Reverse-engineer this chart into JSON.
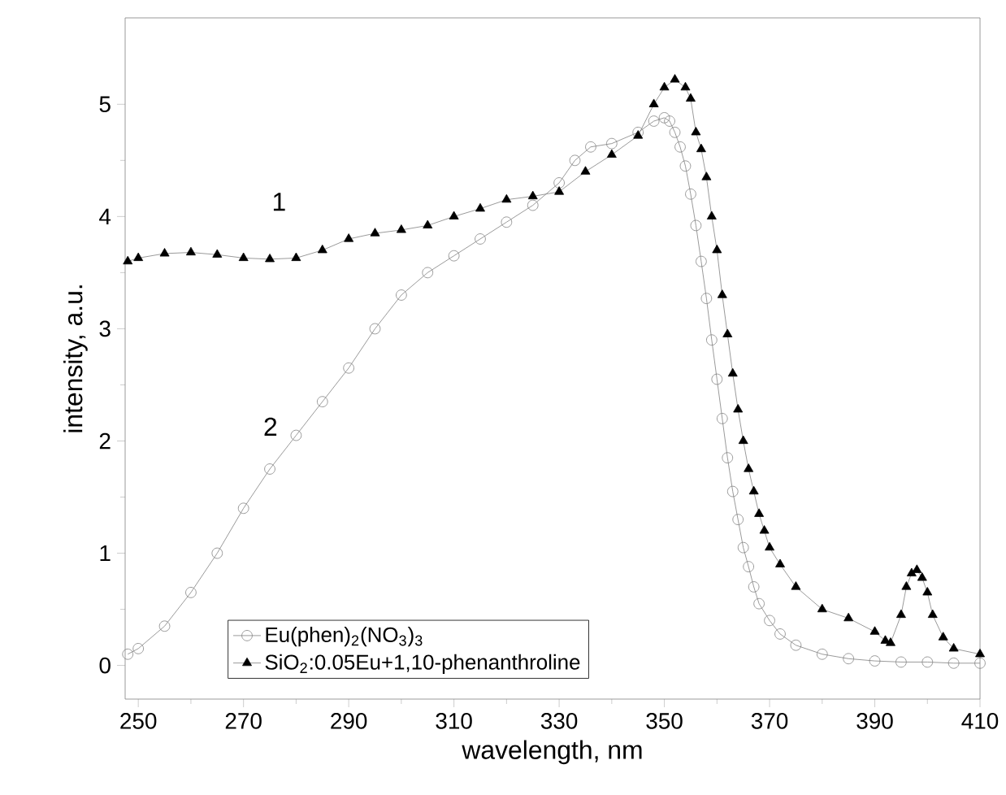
{
  "chart_data": {
    "type": "line",
    "xlabel": "wavelength, nm",
    "ylabel": "intensity, a.u.",
    "xlim": [
      247.5,
      410
    ],
    "ylim": [
      -0.3,
      5.77
    ],
    "xticks": [
      250,
      270,
      290,
      310,
      330,
      350,
      370,
      390,
      410
    ],
    "yticks": [
      0,
      1,
      2,
      3,
      4,
      5
    ],
    "legend": "bottom",
    "annotations": [
      "1",
      "2"
    ],
    "series": [
      {
        "name": "Eu(phen)$_{2}$(NO$_{3}$)$_{3}$",
        "color": "#808080",
        "marker": "circle",
        "x": [
          248,
          250,
          255,
          260,
          265,
          270,
          275,
          280,
          285,
          290,
          295,
          300,
          305,
          310,
          315,
          320,
          325,
          330,
          333,
          336,
          340,
          345,
          348,
          350,
          351,
          352,
          353,
          354,
          355,
          356,
          357,
          358,
          359,
          360,
          361,
          362,
          363,
          364,
          365,
          366,
          367,
          368,
          370,
          372,
          375,
          380,
          385,
          390,
          395,
          400,
          405,
          410
        ],
        "values": [
          0.1,
          0.15,
          0.35,
          0.65,
          1.0,
          1.4,
          1.75,
          2.05,
          2.35,
          2.65,
          3.0,
          3.3,
          3.5,
          3.65,
          3.8,
          3.95,
          4.1,
          4.3,
          4.5,
          4.62,
          4.65,
          4.75,
          4.85,
          4.88,
          4.85,
          4.75,
          4.62,
          4.45,
          4.2,
          3.92,
          3.6,
          3.27,
          2.9,
          2.55,
          2.2,
          1.85,
          1.55,
          1.3,
          1.05,
          0.88,
          0.7,
          0.55,
          0.4,
          0.28,
          0.18,
          0.1,
          0.06,
          0.04,
          0.03,
          0.03,
          0.02,
          0.02
        ]
      },
      {
        "name": "SiO$_{2}$:0.05Eu+1,10-phenanthroline",
        "color": "#000000",
        "marker": "triangle",
        "x": [
          248,
          250,
          255,
          260,
          265,
          270,
          275,
          280,
          285,
          290,
          295,
          300,
          305,
          310,
          315,
          320,
          325,
          330,
          335,
          340,
          345,
          348,
          350,
          352,
          354,
          355,
          356,
          357,
          358,
          359,
          360,
          361,
          362,
          363,
          364,
          365,
          366,
          367,
          368,
          369,
          370,
          372,
          375,
          380,
          385,
          390,
          392,
          393,
          395,
          396,
          397,
          398,
          399,
          400,
          401,
          403,
          405,
          410
        ],
        "values": [
          3.6,
          3.63,
          3.67,
          3.68,
          3.66,
          3.63,
          3.62,
          3.63,
          3.7,
          3.8,
          3.85,
          3.88,
          3.92,
          4.0,
          4.07,
          4.15,
          4.18,
          4.22,
          4.4,
          4.55,
          4.72,
          5.0,
          5.15,
          5.22,
          5.15,
          5.05,
          4.75,
          4.6,
          4.35,
          4.0,
          3.7,
          3.3,
          2.95,
          2.6,
          2.28,
          2.0,
          1.75,
          1.55,
          1.35,
          1.2,
          1.05,
          0.9,
          0.7,
          0.5,
          0.42,
          0.3,
          0.22,
          0.2,
          0.45,
          0.7,
          0.82,
          0.85,
          0.78,
          0.65,
          0.45,
          0.25,
          0.15,
          0.1
        ]
      }
    ]
  }
}
